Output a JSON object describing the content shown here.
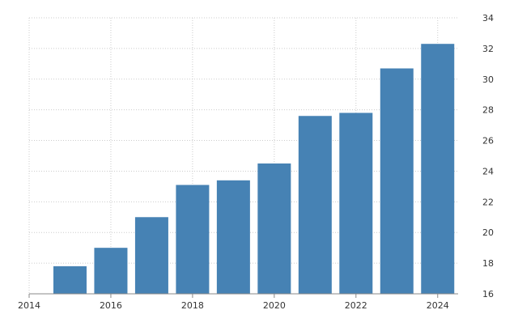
{
  "chart_data": {
    "type": "bar",
    "title": "",
    "xlabel": "",
    "ylabel": "",
    "x": [
      2015,
      2016,
      2017,
      2018,
      2019,
      2020,
      2021,
      2022,
      2023,
      2024
    ],
    "values": [
      17.8,
      19.0,
      21.0,
      23.1,
      23.4,
      24.5,
      27.6,
      27.8,
      30.7,
      32.3
    ],
    "xlim": [
      2014,
      2024.5
    ],
    "ylim": [
      16,
      34
    ],
    "x_ticks": [
      "2014",
      "2016",
      "2018",
      "2020",
      "2022",
      "2024"
    ],
    "y_ticks": [
      "16",
      "18",
      "20",
      "22",
      "24",
      "26",
      "28",
      "30",
      "32",
      "34"
    ],
    "y_axis_side": "right",
    "grid": true,
    "legend": false,
    "colors": {
      "bar": "#4682b4",
      "grid": "#cccccc",
      "axis": "#888888"
    }
  }
}
